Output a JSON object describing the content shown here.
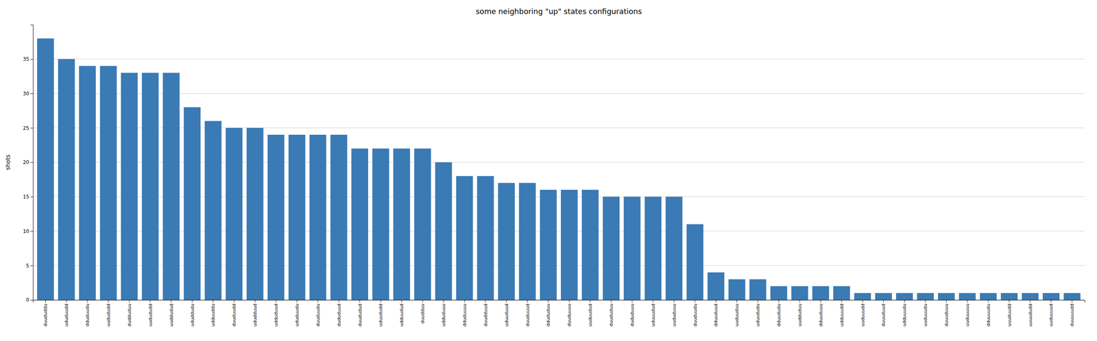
{
  "chart_data": {
    "type": "bar",
    "title": "some neighboring \"up\" states configurations",
    "ylabel": "shots",
    "categories": [
      "duududdu",
      "ududuudd",
      "dduduudu",
      "uudududd",
      "dudduduu",
      "uudududd",
      "uuddudud",
      "ududdudu",
      "udduuddu",
      "duuduudd",
      "ududduud",
      "udduduud",
      "ududuudu",
      "duuduudu",
      "dududuud",
      "duududud",
      "uduududd",
      "udduudud",
      "duudduu",
      "udduduuu",
      "dduduuuu",
      "duudduud",
      "uduuduud",
      "duuduuud",
      "ddududuu",
      "duuduuuu",
      "uuduudud",
      "duududuu",
      "dududuuu",
      "uduuudud",
      "uududuuu",
      "duuduudu",
      "dduuduud",
      "uuduuduu",
      "uduududu",
      "dduududu",
      "uudduduu",
      "dduuduuu",
      "udduuudd",
      "uuduuudd",
      "duuuduud",
      "udduuudu",
      "uuduuudu",
      "duuuduuu",
      "uuduuuuu",
      "dduuuudu",
      "uuuduudd",
      "uuuududd",
      "uuduuuud",
      "duuuuudd"
    ],
    "values": [
      38,
      35,
      34,
      34,
      33,
      33,
      33,
      28,
      26,
      25,
      25,
      24,
      24,
      24,
      24,
      22,
      22,
      22,
      22,
      20,
      18,
      18,
      17,
      17,
      16,
      16,
      16,
      15,
      15,
      15,
      15,
      11,
      4,
      3,
      3,
      2,
      2,
      2,
      2,
      1,
      1,
      1,
      1,
      1,
      1,
      1,
      1,
      1,
      1,
      1
    ],
    "color": "#3a7ab5",
    "ylim": [
      0,
      40
    ],
    "yticks": [
      0,
      5,
      10,
      15,
      20,
      25,
      30,
      35
    ],
    "grid": true
  }
}
